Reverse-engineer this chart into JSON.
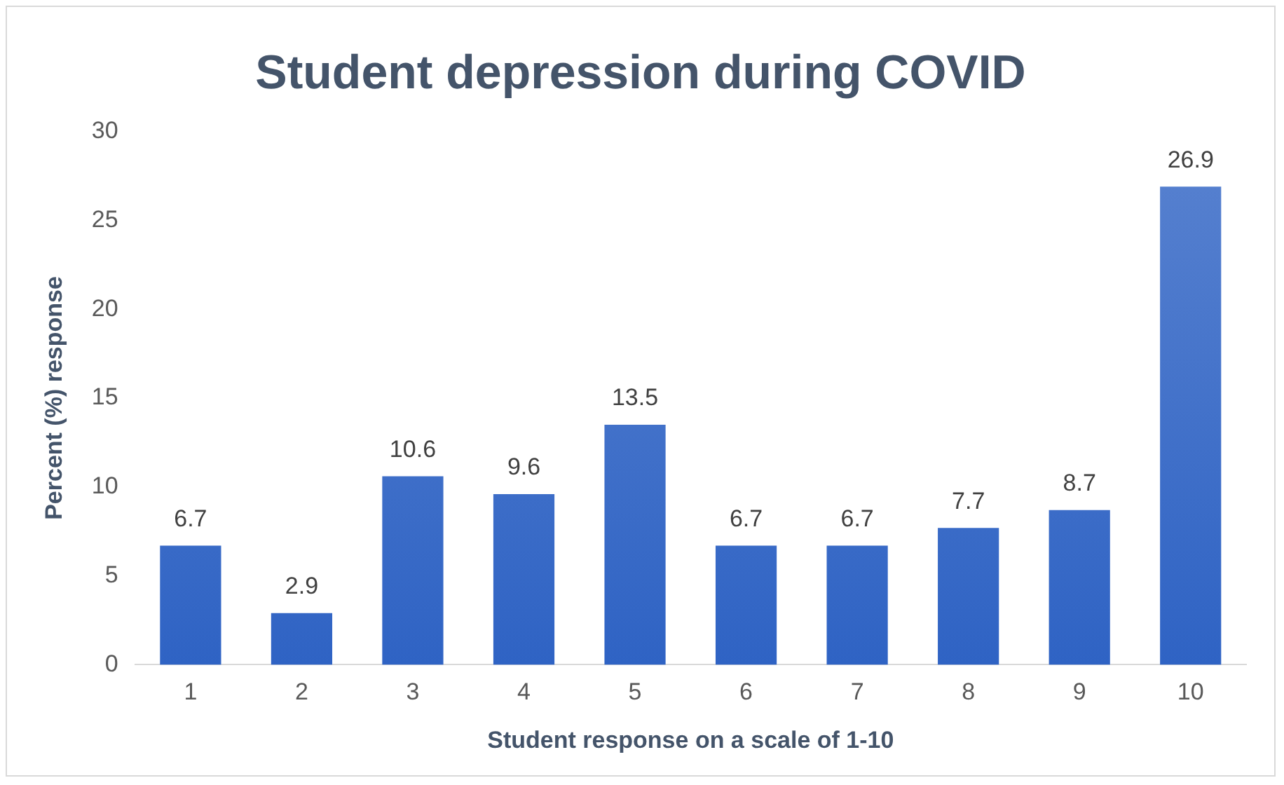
{
  "chart_data": {
    "type": "bar",
    "title": "Student depression during COVID",
    "xlabel": "Student response on a scale of 1-10",
    "ylabel": "Percent (%) response",
    "categories": [
      "1",
      "2",
      "3",
      "4",
      "5",
      "6",
      "7",
      "8",
      "9",
      "10"
    ],
    "values": [
      6.7,
      2.9,
      10.6,
      9.6,
      13.5,
      6.7,
      6.7,
      7.7,
      8.7,
      26.9
    ],
    "color": "#2f63c4",
    "ylim": [
      0,
      30
    ],
    "yticks": [
      0,
      5,
      10,
      15,
      20,
      25,
      30
    ],
    "grid": false,
    "data_labels": true,
    "legend": false
  }
}
